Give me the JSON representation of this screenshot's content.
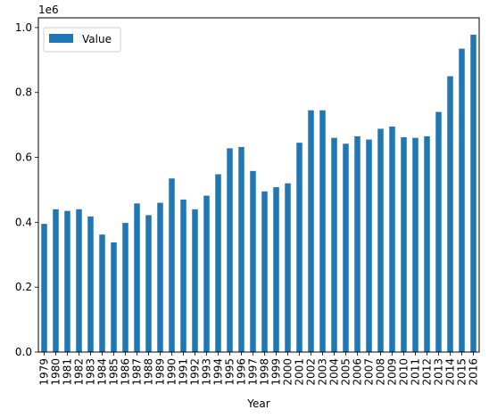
{
  "chart_data": {
    "type": "bar",
    "title": "",
    "xlabel": "Year",
    "ylabel": "",
    "y_scale_label": "1e6",
    "ylim": [
      0,
      1.03
    ],
    "yticks": [
      0.0,
      0.2,
      0.4,
      0.6,
      0.8,
      1.0
    ],
    "ytick_labels": [
      "0.0",
      "0.2",
      "0.4",
      "0.6",
      "0.8",
      "1.0"
    ],
    "grid": false,
    "legend_position": "top-left",
    "categories": [
      "1979",
      "1980",
      "1981",
      "1982",
      "1983",
      "1984",
      "1985",
      "1986",
      "1987",
      "1988",
      "1989",
      "1990",
      "1991",
      "1992",
      "1993",
      "1994",
      "1995",
      "1996",
      "1997",
      "1998",
      "1999",
      "2000",
      "2001",
      "2002",
      "2003",
      "2004",
      "2005",
      "2006",
      "2007",
      "2008",
      "2009",
      "2010",
      "2011",
      "2012",
      "2013",
      "2014",
      "2015",
      "2016"
    ],
    "series": [
      {
        "name": "Value",
        "color": "#1f77b4",
        "values": [
          0.395,
          0.44,
          0.435,
          0.44,
          0.418,
          0.362,
          0.338,
          0.398,
          0.458,
          0.422,
          0.46,
          0.535,
          0.47,
          0.44,
          0.482,
          0.548,
          0.628,
          0.632,
          0.558,
          0.495,
          0.508,
          0.52,
          0.645,
          0.745,
          0.745,
          0.66,
          0.642,
          0.665,
          0.655,
          0.688,
          0.695,
          0.662,
          0.66,
          0.665,
          0.74,
          0.85,
          0.935,
          0.978
        ]
      }
    ]
  }
}
